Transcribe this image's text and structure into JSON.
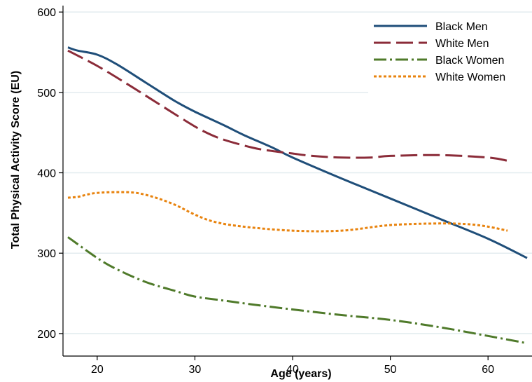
{
  "chart_data": {
    "type": "line",
    "xlabel": "Age (years)",
    "ylabel": "Total Physical Activity Score (EU)",
    "xlim": [
      16.5,
      64.5
    ],
    "ylim": [
      172,
      608
    ],
    "x_ticks": [
      20,
      30,
      40,
      50,
      60
    ],
    "y_ticks": [
      200,
      300,
      400,
      500,
      600
    ],
    "grid": true,
    "legend_position": "top-right",
    "series": [
      {
        "name": "Black Men",
        "color": "#1f4e79",
        "dash": "solid",
        "x": [
          17,
          18,
          20,
          22,
          25,
          28,
          30,
          33,
          35,
          38,
          40,
          45,
          50,
          55,
          60,
          64
        ],
        "y": [
          556,
          552,
          547,
          535,
          512,
          489,
          476,
          459,
          447,
          431,
          419,
          393,
          368,
          343,
          318,
          294
        ]
      },
      {
        "name": "White Men",
        "color": "#8b2c39",
        "dash": "long-dash",
        "x": [
          17,
          20,
          23,
          26,
          29,
          31,
          33,
          36,
          38,
          40,
          42,
          45,
          48,
          50,
          55,
          60,
          62
        ],
        "y": [
          552,
          533,
          511,
          488,
          465,
          451,
          441,
          431,
          427,
          424,
          421,
          419,
          419,
          421,
          422,
          419,
          415
        ]
      },
      {
        "name": "Black Women",
        "color": "#4f7a2a",
        "dash": "dash-dot",
        "x": [
          17,
          20,
          22,
          25,
          28,
          30,
          33,
          36,
          40,
          45,
          50,
          55,
          60,
          64
        ],
        "y": [
          320,
          294,
          280,
          264,
          253,
          246,
          241,
          236,
          230,
          223,
          217,
          208,
          197,
          188
        ]
      },
      {
        "name": "White Women",
        "color": "#e8830e",
        "dash": "dot",
        "x": [
          17,
          18,
          19,
          20,
          22,
          24,
          26,
          28,
          30,
          32,
          35,
          40,
          45,
          50,
          55,
          58,
          60,
          62
        ],
        "y": [
          369,
          370,
          373,
          375,
          376,
          375,
          369,
          360,
          348,
          339,
          333,
          328,
          328,
          335,
          337,
          336,
          333,
          328
        ]
      }
    ]
  }
}
